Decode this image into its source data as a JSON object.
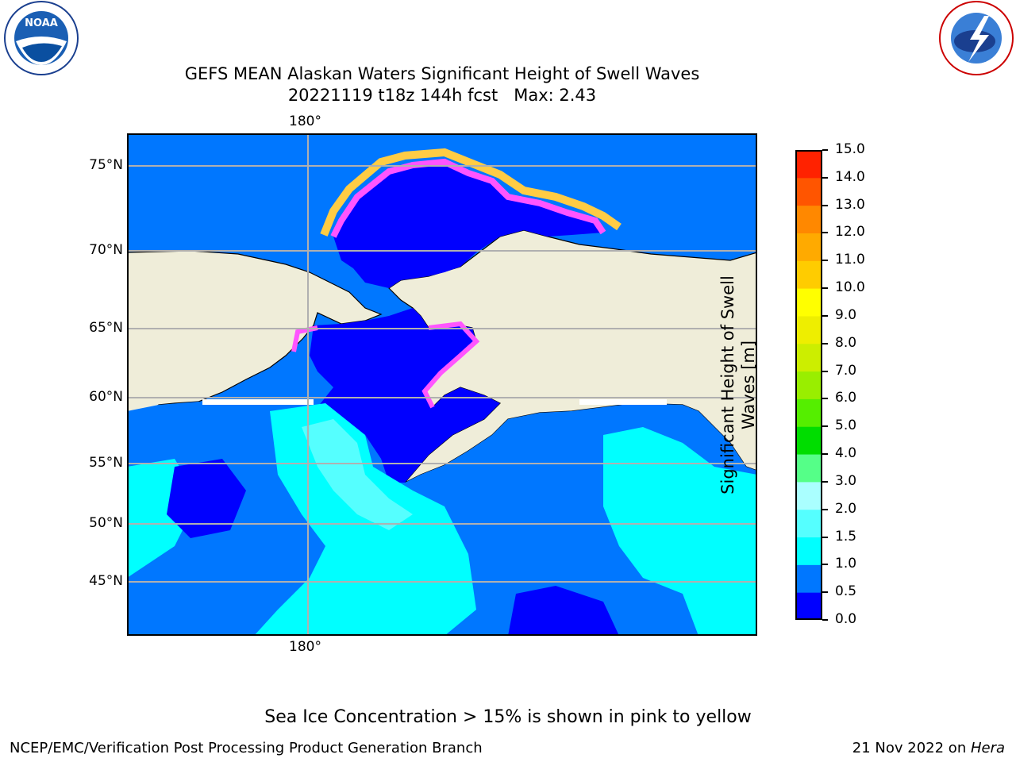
{
  "header": {
    "title_line1": "GEFS MEAN Alaskan Waters Significant Height of Swell Waves",
    "title_line2": "20221119 t18z 144h fcst   Max: 2.43"
  },
  "logos": {
    "left": {
      "icon": "noaa-logo",
      "text": "NOAA",
      "ring_text_top": "NATIONAL OCEANIC AND ATMOSPHERIC ADMINISTRATION",
      "ring_text_bottom": "U.S. DEPARTMENT OF COMMERCE"
    },
    "right": {
      "icon": "nws-logo",
      "ring_text": "NATIONAL WEATHER SERVICE"
    }
  },
  "map": {
    "lat_labels": [
      "75°N",
      "70°N",
      "65°N",
      "60°N",
      "55°N",
      "50°N",
      "45°N"
    ],
    "lon_label_top": "180°",
    "lon_label_bottom": "180°",
    "colors": {
      "land": "#efedd9",
      "wave_lt0_5": "#0000ff",
      "wave_0_5_1": "#0077ff",
      "wave_1_1_5": "#00ffff",
      "wave_1_5_2": "#55ffff",
      "ice_pink": "#ff55ff",
      "ice_yellow": "#ffcc44",
      "grid": "#b0b0b0"
    }
  },
  "colorbar": {
    "ticks": [
      "15.0",
      "14.0",
      "13.0",
      "12.0",
      "11.0",
      "10.0",
      "9.0",
      "8.0",
      "7.0",
      "6.0",
      "5.0",
      "4.0",
      "3.0",
      "2.0",
      "1.5",
      "1.0",
      "0.5",
      "0.0"
    ],
    "colors": [
      "#0000ff",
      "#0077ff",
      "#00ffff",
      "#55ffff",
      "#aaffff",
      "#55ff88",
      "#00dd00",
      "#55ee00",
      "#99ee00",
      "#ccee00",
      "#eeee00",
      "#ffff00",
      "#ffcc00",
      "#ffaa00",
      "#ff8800",
      "#ff5500",
      "#ff2200"
    ],
    "label_line1": "Significant Height of Swell",
    "label_line2": "Waves [m]"
  },
  "footer": {
    "note": "Sea Ice Concentration > 15% is shown in pink to yellow",
    "left": "NCEP/EMC/Verification Post Processing Product Generation Branch",
    "right_date": "21 Nov 2022 on ",
    "right_host": "Hera"
  }
}
